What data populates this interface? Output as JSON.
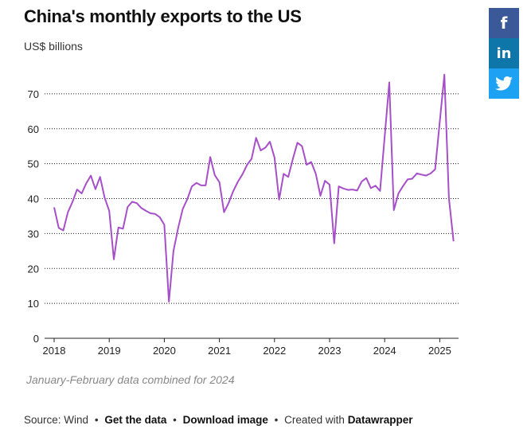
{
  "title": "China's monthly exports to the US",
  "subtitle": "US$ billions",
  "note": "January-February data combined for 2024",
  "footer": {
    "source": "Source: Wind",
    "get_data": "Get the data",
    "download": "Download image",
    "created_with": "Created with",
    "datawrapper": "Datawrapper",
    "separator": "•"
  },
  "share": {
    "facebook": "f",
    "linkedin": "in",
    "twitter": "twitter-icon"
  },
  "colors": {
    "line": "#a64fc9",
    "grid": "#222222",
    "facebook": "#3b5998",
    "linkedin": "#0e76a8",
    "twitter": "#1da1f2"
  },
  "chart_data": {
    "type": "line",
    "title": "China's monthly exports to the US",
    "xlabel": "",
    "ylabel": "US$ billions",
    "ylim": [
      0,
      75
    ],
    "yticks": [
      0,
      10,
      20,
      30,
      40,
      50,
      60,
      70
    ],
    "xticks": [
      "2018",
      "2019",
      "2020",
      "2021",
      "2022",
      "2023",
      "2024",
      "2025"
    ],
    "grid": "horizontal dotted",
    "series": [
      {
        "x": [
          "2018-01",
          "2018-02",
          "2018-03",
          "2018-04",
          "2018-05",
          "2018-06",
          "2018-07",
          "2018-08",
          "2018-09",
          "2018-10",
          "2018-11",
          "2018-12",
          "2019-01",
          "2019-02",
          "2019-03",
          "2019-04",
          "2019-05",
          "2019-06",
          "2019-07",
          "2019-08",
          "2019-09",
          "2019-10",
          "2019-11",
          "2019-12",
          "2020-01",
          "2020-02",
          "2020-03",
          "2020-04",
          "2020-05",
          "2020-06",
          "2020-07",
          "2020-08",
          "2020-09",
          "2020-10",
          "2020-11",
          "2020-12",
          "2021-01",
          "2021-02",
          "2021-03",
          "2021-04",
          "2021-05",
          "2021-06",
          "2021-07",
          "2021-08",
          "2021-09",
          "2021-10",
          "2021-11",
          "2021-12",
          "2022-01",
          "2022-02",
          "2022-03",
          "2022-04",
          "2022-05",
          "2022-06",
          "2022-07",
          "2022-08",
          "2022-09",
          "2022-10",
          "2022-11",
          "2022-12",
          "2023-01",
          "2023-02",
          "2023-03",
          "2023-04",
          "2023-05",
          "2023-06",
          "2023-07",
          "2023-08",
          "2023-09",
          "2023-10",
          "2023-11",
          "2023-12",
          "2024-02",
          "2024-03",
          "2024-04",
          "2024-05",
          "2024-06",
          "2024-07",
          "2024-08",
          "2024-09",
          "2024-10",
          "2024-11",
          "2024-12",
          "2025-01",
          "2025-02",
          "2025-03",
          "2025-04"
        ],
        "values": [
          37.5,
          31.6,
          30.9,
          36.1,
          39.1,
          42.6,
          41.5,
          44.4,
          46.6,
          42.7,
          46.2,
          40.3,
          36.5,
          22.6,
          31.7,
          31.4,
          37.6,
          39.1,
          38.7,
          37.3,
          36.5,
          35.8,
          35.6,
          34.7,
          32.5,
          10.5,
          25.0,
          31.5,
          37.0,
          39.8,
          43.5,
          44.5,
          43.8,
          43.8,
          51.9,
          46.7,
          44.7,
          36.1,
          38.7,
          42.1,
          44.8,
          46.9,
          49.6,
          51.4,
          57.4,
          53.8,
          54.6,
          56.3,
          51.8,
          39.7,
          47.1,
          46.2,
          51.4,
          56.0,
          55.0,
          49.7,
          50.5,
          47.1,
          40.8,
          45.1,
          44.0,
          27.2,
          43.5,
          42.9,
          42.5,
          42.6,
          42.3,
          44.9,
          45.9,
          43.0,
          43.7,
          42.2,
          73.3,
          36.7,
          41.5,
          43.6,
          45.5,
          45.7,
          47.2,
          46.9,
          46.6,
          47.2,
          48.4,
          62.0,
          75.5,
          40.1,
          27.8
        ]
      }
    ]
  }
}
